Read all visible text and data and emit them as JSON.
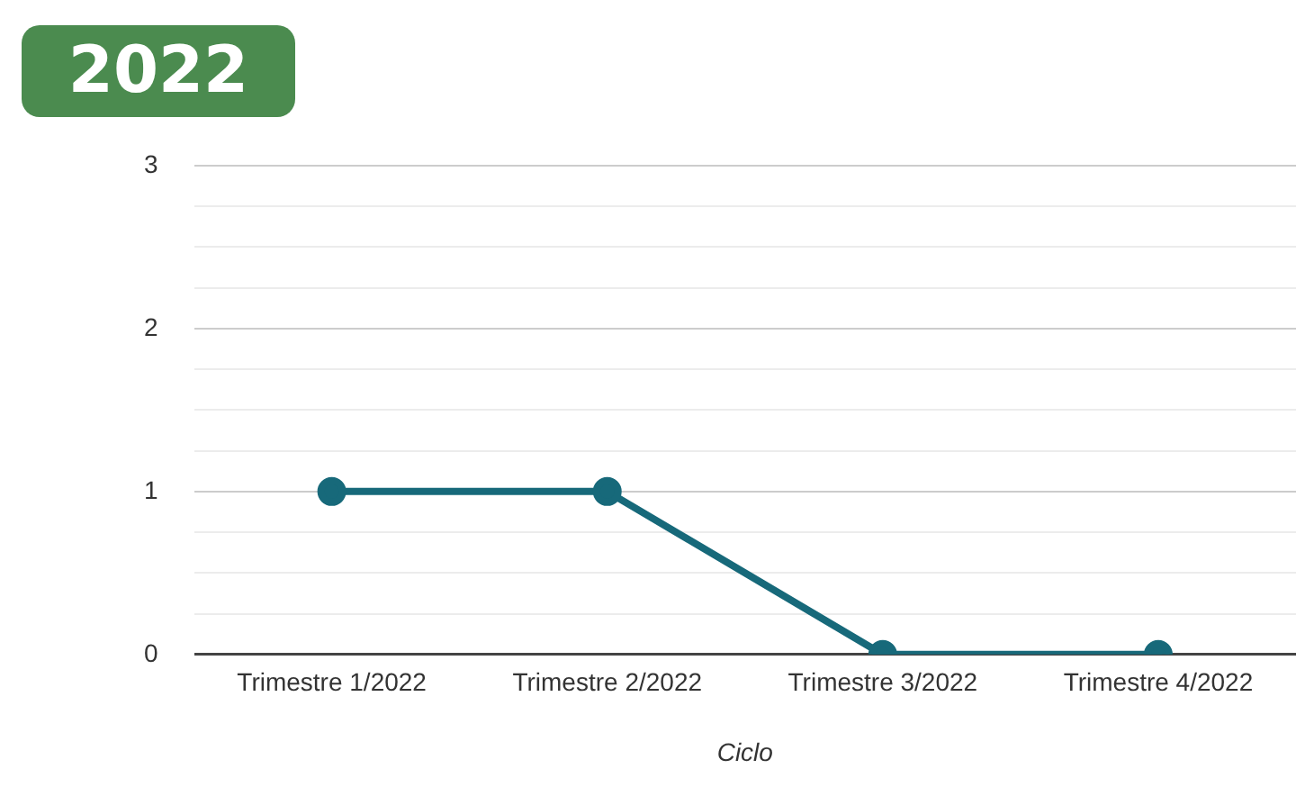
{
  "chart_data": {
    "type": "line",
    "title": "2022",
    "xlabel": "Ciclo",
    "categories": [
      "Trimestre 1/2022",
      "Trimestre 2/2022",
      "Trimestre 3/2022",
      "Trimestre 4/2022"
    ],
    "series": [
      {
        "color": "#17697a",
        "values": [
          1,
          1,
          0,
          0
        ]
      }
    ],
    "ylim": [
      0,
      3
    ],
    "yticks": [
      0,
      {
        "value": 0.25,
        "label": null
      },
      {
        "value": 0.5,
        "label": null
      },
      {
        "value": 0.75,
        "label": null
      },
      1,
      {
        "value": 1.25,
        "label": null
      },
      {
        "value": 1.5,
        "label": null
      },
      {
        "value": 1.75,
        "label": null
      },
      2,
      {
        "value": 2.25,
        "label": null
      },
      {
        "value": 2.5,
        "label": null
      },
      {
        "value": 2.75,
        "label": null
      },
      3
    ],
    "grid": "y",
    "legend": false,
    "marker": "circle",
    "line_style": "solid"
  }
}
